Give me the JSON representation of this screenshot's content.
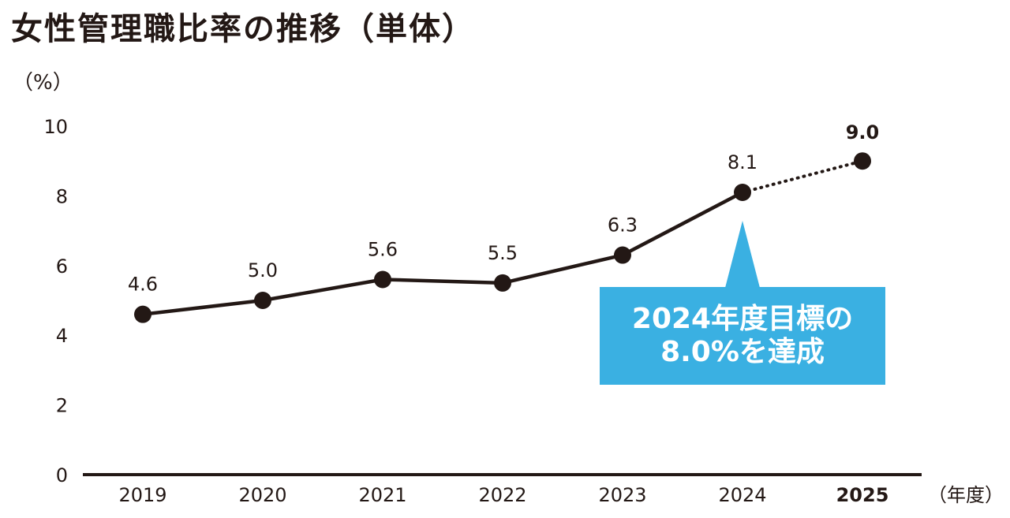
{
  "title": "女性管理職比率の推移（単体）",
  "y_unit": "（%）",
  "x_unit": "（年度）",
  "callout": {
    "line1": "2024年度目標の",
    "line2": "8.0%を達成"
  },
  "chart_data": {
    "type": "line",
    "title": "女性管理職比率の推移（単体）",
    "xlabel": "（年度）",
    "ylabel": "（%）",
    "ylim": [
      0,
      10
    ],
    "yticks": [
      0,
      2,
      4,
      6,
      8,
      10
    ],
    "categories": [
      "2019",
      "2020",
      "2021",
      "2022",
      "2023",
      "2024",
      "2025"
    ],
    "values": [
      4.6,
      5.0,
      5.6,
      5.5,
      6.3,
      8.1,
      9.0
    ],
    "value_labels": [
      "4.6",
      "5.0",
      "5.6",
      "5.5",
      "6.3",
      "8.1",
      "9.0"
    ],
    "dotted_segment_from": "2024",
    "highlight_category": "2025",
    "grid": false,
    "annotation": "2024年度目標の8.0%を達成"
  }
}
